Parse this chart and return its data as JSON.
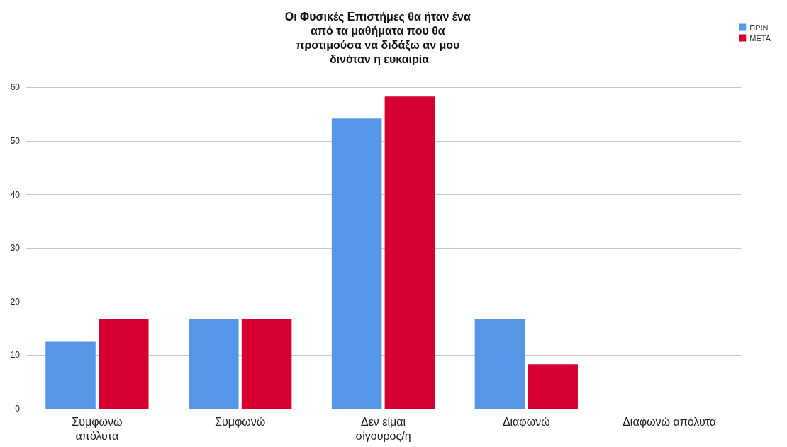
{
  "chart_data": {
    "type": "bar",
    "title": "Οι Φυσικές Επιστήμες θα ήταν ένα από τα μαθήματα που θα προτιμούσα να διδάξω αν μου δινόταν η ευκαιρία",
    "categories": [
      "Συμφωνώ\nαπόλυτα",
      "Συμφωνώ",
      "Δεν είμαι\nσίγουρος/η",
      "Διαφωνώ",
      "Διαφωνώ απόλυτα"
    ],
    "series": [
      {
        "name": "ΠΡΙΝ",
        "color": "#5597e6",
        "values": [
          12.5,
          16.7,
          54.2,
          16.7,
          0
        ]
      },
      {
        "name": "ΜΕΤΑ",
        "color": "#d5002f",
        "values": [
          16.7,
          16.7,
          58.3,
          8.3,
          0
        ]
      }
    ],
    "ylim": [
      0,
      66
    ],
    "yticks": [
      0,
      10,
      20,
      30,
      40,
      50,
      60
    ],
    "grid": "y",
    "legend": "top right"
  }
}
